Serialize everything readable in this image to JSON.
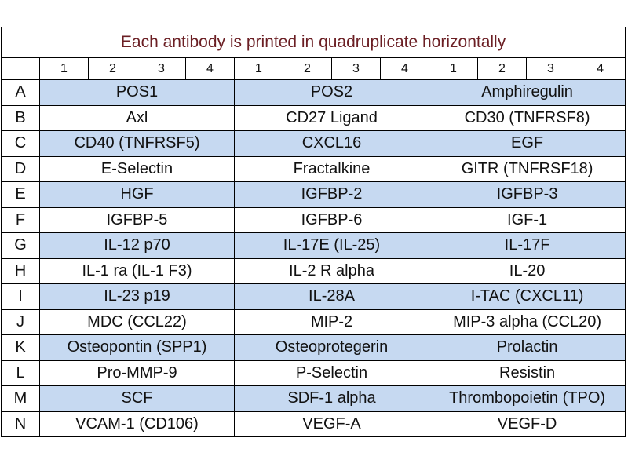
{
  "title": "Each antibody is printed in quadruplicate horizontally",
  "column_numbers": [
    "1",
    "2",
    "3",
    "4"
  ],
  "colors": {
    "title": "#6b1f24",
    "highlight_row": "#c6d9f1"
  },
  "rows": [
    {
      "label": "A",
      "cells": [
        "POS1",
        "POS2",
        "Amphiregulin"
      ],
      "highlight": true
    },
    {
      "label": "B",
      "cells": [
        "Axl",
        "CD27 Ligand",
        "CD30 (TNFRSF8)"
      ],
      "highlight": false
    },
    {
      "label": "C",
      "cells": [
        "CD40 (TNFRSF5)",
        "CXCL16",
        "EGF"
      ],
      "highlight": true
    },
    {
      "label": "D",
      "cells": [
        "E-Selectin",
        "Fractalkine",
        "GITR (TNFRSF18)"
      ],
      "highlight": false
    },
    {
      "label": "E",
      "cells": [
        "HGF",
        "IGFBP-2",
        "IGFBP-3"
      ],
      "highlight": true
    },
    {
      "label": "F",
      "cells": [
        "IGFBP-5",
        "IGFBP-6",
        "IGF-1"
      ],
      "highlight": false
    },
    {
      "label": "G",
      "cells": [
        "IL-12 p70",
        "IL-17E (IL-25)",
        "IL-17F"
      ],
      "highlight": true
    },
    {
      "label": "H",
      "cells": [
        "IL-1 ra (IL-1 F3)",
        "IL-2 R alpha",
        "IL-20"
      ],
      "highlight": false
    },
    {
      "label": "I",
      "cells": [
        "IL-23 p19",
        "IL-28A",
        "I-TAC (CXCL11)"
      ],
      "highlight": true
    },
    {
      "label": "J",
      "cells": [
        "MDC (CCL22)",
        "MIP-2",
        "MIP-3 alpha (CCL20)"
      ],
      "highlight": false
    },
    {
      "label": "K",
      "cells": [
        "Osteopontin (SPP1)",
        "Osteoprotegerin",
        "Prolactin"
      ],
      "highlight": true
    },
    {
      "label": "L",
      "cells": [
        "Pro-MMP-9",
        "P-Selectin",
        "Resistin"
      ],
      "highlight": false
    },
    {
      "label": "M",
      "cells": [
        "SCF",
        "SDF-1 alpha",
        "Thrombopoietin (TPO)"
      ],
      "highlight": true
    },
    {
      "label": "N",
      "cells": [
        "VCAM-1 (CD106)",
        "VEGF-A",
        "VEGF-D"
      ],
      "highlight": false
    }
  ]
}
